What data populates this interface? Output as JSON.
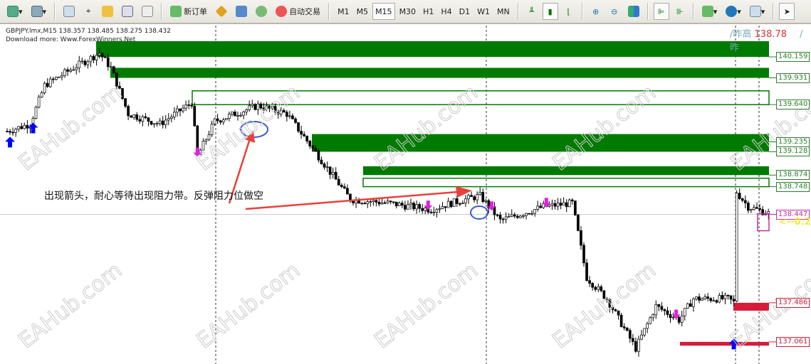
{
  "toolbar": {
    "new_order": "新订单",
    "auto_trading": "自动交易",
    "timeframes": [
      "M1",
      "M5",
      "M15",
      "M30",
      "H1",
      "H4",
      "D1",
      "W1",
      "MN"
    ],
    "active_timeframe": "M15"
  },
  "chart": {
    "symbol_line": "GBPJPY.lmx,M15  138.357 138.485 138.275 138.432",
    "download_line": "Download more: Www.ForexWinners.Net",
    "yesterday_high_label": "/昨高",
    "yesterday_high_value": "138.78",
    "yesterday_low_label": "/昨",
    "annotation": "出现箭头，耐心等待出现阻力带。反弹阻力位做空",
    "countdown": "<--0:2",
    "watermark": "EAHub.com",
    "price_labels": [
      {
        "text": "140.159",
        "color": "#2e7d2e"
      },
      {
        "text": "139.931",
        "color": "#2e7d2e"
      },
      {
        "text": "139.640",
        "color": "#2e7d2e"
      },
      {
        "text": "139.235",
        "color": "#2e7d2e"
      },
      {
        "text": "139.128",
        "color": "#2e7d2e"
      },
      {
        "text": "138.874",
        "color": "#2e7d2e"
      },
      {
        "text": "138.748",
        "color": "#2e7d2e"
      },
      {
        "text": "138.447",
        "color": "#c0309a"
      },
      {
        "text": "137.486",
        "color": "#c8203a"
      },
      {
        "text": "137.061",
        "color": "#c8203a"
      }
    ],
    "colors": {
      "resistance": "#007a00",
      "support": "#d81b3c",
      "up_arrow": "#0000ff",
      "down_arrow": "#e020e0",
      "annotation_arrow": "#e8403a"
    }
  },
  "chart_data": {
    "type": "candlestick",
    "symbol": "GBPJPY",
    "timeframe": "M15",
    "close_path": [
      [
        0,
        139.35
      ],
      [
        8,
        139.43
      ],
      [
        13,
        139.85
      ],
      [
        23,
        140.04
      ],
      [
        32,
        140.2
      ],
      [
        36,
        140.04
      ],
      [
        42,
        139.54
      ],
      [
        53,
        139.43
      ],
      [
        64,
        139.66
      ],
      [
        66,
        139.08
      ],
      [
        72,
        139.46
      ],
      [
        87,
        139.63
      ],
      [
        97,
        139.54
      ],
      [
        107,
        139.12
      ],
      [
        119,
        138.61
      ],
      [
        132,
        138.57
      ],
      [
        147,
        138.5
      ],
      [
        154,
        138.57
      ],
      [
        164,
        138.65
      ],
      [
        171,
        138.38
      ],
      [
        186,
        138.53
      ],
      [
        196,
        138.57
      ],
      [
        201,
        137.76
      ],
      [
        208,
        137.53
      ],
      [
        218,
        136.99
      ],
      [
        225,
        137.45
      ],
      [
        233,
        137.3
      ],
      [
        238,
        137.53
      ],
      [
        250,
        137.53
      ],
      [
        252,
        137.49
      ],
      [
        253,
        138.69
      ],
      [
        257,
        138.53
      ],
      [
        264,
        138.46
      ]
    ],
    "resistance_zones": [
      [
        140.159,
        140.33
      ],
      [
        139.931,
        140.04
      ],
      [
        139.128,
        139.32
      ],
      [
        138.874,
        138.97
      ]
    ],
    "resistance_outlines": [
      [
        139.64,
        139.79
      ],
      [
        138.748,
        138.84
      ]
    ],
    "support_zones": [
      [
        137.4,
        137.486
      ],
      [
        137.02,
        137.061
      ]
    ],
    "up_arrows": [
      1,
      9,
      252
    ],
    "down_arrows": [
      66,
      146,
      168,
      187,
      232
    ]
  }
}
